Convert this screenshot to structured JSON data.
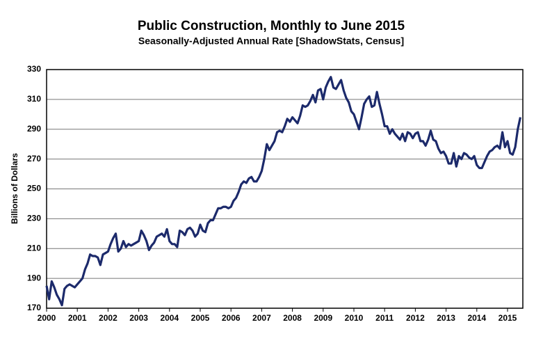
{
  "chart_data": {
    "type": "line",
    "title": "Public Construction, Monthly to June 2015",
    "subtitle": "Seasonally-Adjusted Annual Rate [ShadowStats, Census]",
    "y_label": "Billions of Dollars",
    "color": "#1c2a6b",
    "grid": true,
    "ylim": [
      170,
      330
    ],
    "yticks": [
      170,
      190,
      210,
      230,
      250,
      270,
      290,
      310,
      330
    ],
    "categories": [
      "2000",
      null,
      null,
      null,
      null,
      null,
      null,
      null,
      null,
      null,
      null,
      null,
      "2001",
      null,
      null,
      null,
      null,
      null,
      null,
      null,
      null,
      null,
      null,
      null,
      "2002",
      null,
      null,
      null,
      null,
      null,
      null,
      null,
      null,
      null,
      null,
      null,
      "2003",
      null,
      null,
      null,
      null,
      null,
      null,
      null,
      null,
      null,
      null,
      null,
      "2004",
      null,
      null,
      null,
      null,
      null,
      null,
      null,
      null,
      null,
      null,
      null,
      "2005",
      null,
      null,
      null,
      null,
      null,
      null,
      null,
      null,
      null,
      null,
      null,
      "2006",
      null,
      null,
      null,
      null,
      null,
      null,
      null,
      null,
      null,
      null,
      null,
      "2007",
      null,
      null,
      null,
      null,
      null,
      null,
      null,
      null,
      null,
      null,
      null,
      "2008",
      null,
      null,
      null,
      null,
      null,
      null,
      null,
      null,
      null,
      null,
      null,
      "2009",
      null,
      null,
      null,
      null,
      null,
      null,
      null,
      null,
      null,
      null,
      null,
      "2010",
      null,
      null,
      null,
      null,
      null,
      null,
      null,
      null,
      null,
      null,
      null,
      "2011",
      null,
      null,
      null,
      null,
      null,
      null,
      null,
      null,
      null,
      null,
      null,
      "2012",
      null,
      null,
      null,
      null,
      null,
      null,
      null,
      null,
      null,
      null,
      null,
      "2013",
      null,
      null,
      null,
      null,
      null,
      null,
      null,
      null,
      null,
      null,
      null,
      "2014",
      null,
      null,
      null,
      null,
      null,
      null,
      null,
      null,
      null,
      null,
      null,
      "2015",
      null,
      null,
      null,
      null,
      null
    ],
    "values": [
      185,
      176,
      188,
      184,
      179,
      176,
      172,
      183,
      185,
      186,
      185,
      184,
      186,
      188,
      190,
      196,
      200,
      206,
      205,
      205,
      204,
      199,
      206,
      207,
      208,
      213,
      217,
      220,
      208,
      210,
      215,
      211,
      213,
      212,
      213,
      214,
      215,
      222,
      219,
      215,
      209,
      212,
      214,
      218,
      219,
      220,
      218,
      223,
      215,
      213,
      213,
      211,
      222,
      221,
      219,
      223,
      224,
      222,
      218,
      220,
      226,
      222,
      221,
      227,
      229,
      229,
      233,
      237,
      237,
      238,
      238,
      237,
      238,
      242,
      244,
      248,
      253,
      255,
      254,
      257,
      258,
      255,
      255,
      258,
      262,
      270,
      280,
      276,
      279,
      282,
      288,
      289,
      288,
      292,
      297,
      295,
      298,
      296,
      294,
      299,
      306,
      305,
      306,
      309,
      313,
      308,
      316,
      317,
      310,
      318,
      322,
      325,
      318,
      317,
      320,
      323,
      316,
      311,
      308,
      302,
      300,
      295,
      290,
      298,
      307,
      310,
      312,
      305,
      306,
      315,
      307,
      300,
      292,
      292,
      287,
      290,
      287,
      285,
      283,
      287,
      282,
      288,
      287,
      284,
      287,
      288,
      282,
      282,
      279,
      283,
      289,
      283,
      282,
      277,
      274,
      275,
      272,
      267,
      267,
      274,
      265,
      272,
      270,
      274,
      273,
      271,
      270,
      272,
      266,
      264,
      264,
      268,
      272,
      275,
      276,
      278,
      279,
      277,
      288,
      278,
      282,
      274,
      273,
      278,
      290,
      298
    ]
  }
}
